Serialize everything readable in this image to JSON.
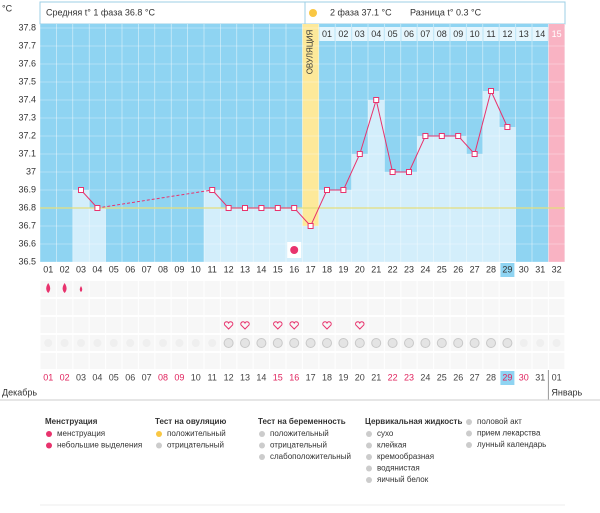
{
  "chart_data": {
    "type": "line",
    "y_label": "°C",
    "phase1_text": "Средняя t° 1 фаза 36.8 °C",
    "phase2_text": "2 фаза 37.1 °C",
    "diff_text": "Разница t° 0.3 °C",
    "ovulation_label": "ОВУЛЯЦИЯ",
    "ovulation_day": 17,
    "current_day": 29,
    "next_cycle_day": 32,
    "coverline": 36.8,
    "categories": [
      "01",
      "02",
      "03",
      "04",
      "05",
      "06",
      "07",
      "08",
      "09",
      "10",
      "11",
      "12",
      "13",
      "14",
      "15",
      "16",
      "17",
      "18",
      "19",
      "20",
      "21",
      "22",
      "23",
      "24",
      "25",
      "26",
      "27",
      "28",
      "29",
      "30",
      "31",
      "32"
    ],
    "values": [
      null,
      null,
      36.9,
      36.8,
      null,
      null,
      null,
      null,
      null,
      null,
      36.9,
      36.8,
      36.8,
      36.8,
      36.8,
      36.8,
      36.7,
      36.9,
      36.9,
      37.1,
      37.4,
      37.0,
      37.0,
      37.2,
      37.2,
      37.2,
      37.1,
      37.45,
      37.25,
      null,
      null,
      null
    ],
    "phase2_labels": [
      "01",
      "02",
      "03",
      "04",
      "05",
      "06",
      "07",
      "08",
      "09",
      "10",
      "11",
      "12",
      "13",
      "14",
      "15"
    ],
    "dates": [
      "01",
      "02",
      "03",
      "04",
      "05",
      "06",
      "07",
      "08",
      "09",
      "10",
      "11",
      "12",
      "13",
      "14",
      "15",
      "16",
      "17",
      "18",
      "19",
      "20",
      "21",
      "22",
      "23",
      "24",
      "25",
      "26",
      "27",
      "28",
      "29",
      "30",
      "31",
      "01"
    ],
    "date_colors": [
      "#e0245e",
      "#e0245e",
      "#444",
      "#444",
      "#444",
      "#444",
      "#444",
      "#e0245e",
      "#e0245e",
      "#444",
      "#444",
      "#444",
      "#444",
      "#444",
      "#e0245e",
      "#e0245e",
      "#444",
      "#444",
      "#444",
      "#444",
      "#444",
      "#e0245e",
      "#e0245e",
      "#444",
      "#444",
      "#444",
      "#444",
      "#444",
      "#e0245e",
      "#e0245e",
      "#444",
      "#444"
    ],
    "months": [
      "Декабрь",
      "Январь"
    ],
    "menstruation_days": [
      1,
      2
    ],
    "spotting_days": [
      3
    ],
    "intercourse_days": [
      12,
      13,
      15,
      16,
      18,
      20
    ],
    "medication_days": [
      12,
      13,
      14,
      15,
      16,
      17,
      18,
      19,
      20,
      21,
      22,
      23,
      24,
      25,
      26,
      27,
      28,
      29
    ],
    "lunar_days": [
      16
    ],
    "ylim": [
      36.5,
      37.8
    ],
    "yticks": [
      36.5,
      36.6,
      36.7,
      36.8,
      36.9,
      37,
      37.1,
      37.2,
      37.3,
      37.4,
      37.5,
      37.6,
      37.7,
      37.8
    ],
    "grid": true,
    "line_color": "#e8336d",
    "background_color": "#8fd4f2",
    "bar_color": "#d3eefb",
    "ovulation_color": "#fde99a",
    "next_cycle_color": "#f9b3c3",
    "coverline_color": "#e5df7c",
    "legend_groups": [
      {
        "title": "Менструация",
        "items": [
          "менструация",
          "небольшие выделения"
        ]
      },
      {
        "title": "Тест на овуляцию",
        "items": [
          "положительный",
          "отрицательный"
        ]
      },
      {
        "title": "Тест на беременность",
        "items": [
          "положительный",
          "отрицательный",
          "слабоположительный"
        ]
      },
      {
        "title": "Цервикальная жидкость",
        "items": [
          "сухо",
          "клейкая",
          "кремообразная",
          "водянистая",
          "яичный белок"
        ]
      },
      {
        "items": [
          "половой акт",
          "прием лекарства",
          "лунный календарь"
        ]
      }
    ]
  }
}
